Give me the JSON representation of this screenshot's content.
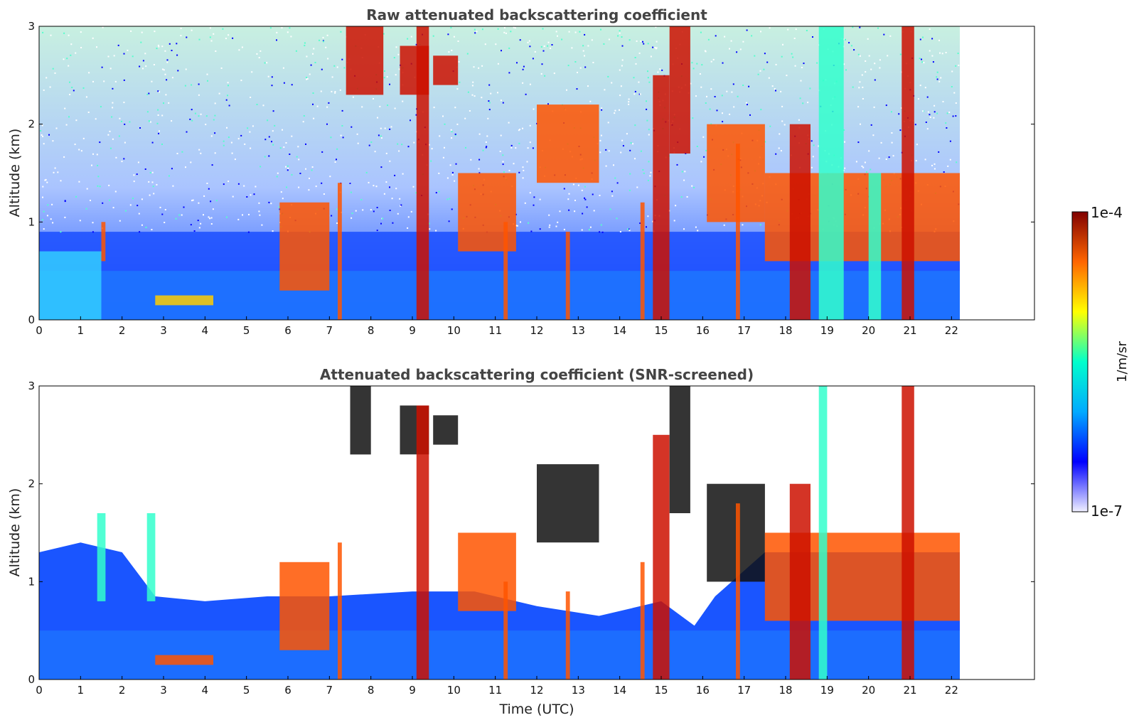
{
  "chart_data": [
    {
      "type": "heatmap",
      "title": "Raw attenuated backscattering coefficient",
      "xlabel": "",
      "ylabel": "Altitude (km)",
      "xlim": [
        0,
        24
      ],
      "ylim": [
        0,
        3
      ],
      "x_ticks": [
        "0",
        "1",
        "2",
        "3",
        "4",
        "5",
        "6",
        "7",
        "8",
        "9",
        "10",
        "11",
        "12",
        "13",
        "14",
        "15",
        "16",
        "17",
        "18",
        "19",
        "20",
        "21",
        "22"
      ],
      "y_ticks": [
        "0",
        "1",
        "2",
        "3"
      ],
      "data_end_time": 22.2,
      "screening": "none",
      "noise_above_km": 0.9,
      "aerosol_layer_top_km": 0.5,
      "cloud_features": [
        {
          "t_start": 0.0,
          "t_end": 1.5,
          "base_km": 0.0,
          "top_km": 0.7,
          "intensity": "low-medium"
        },
        {
          "t_start": 1.5,
          "t_end": 1.6,
          "base_km": 0.6,
          "top_km": 1.0,
          "intensity": "high"
        },
        {
          "t_start": 2.8,
          "t_end": 4.2,
          "base_km": 0.15,
          "top_km": 0.25,
          "intensity": "medium-high"
        },
        {
          "t_start": 5.8,
          "t_end": 7.0,
          "base_km": 0.3,
          "top_km": 1.2,
          "intensity": "high"
        },
        {
          "t_start": 7.2,
          "t_end": 7.3,
          "base_km": 0.0,
          "top_km": 1.4,
          "intensity": "high"
        },
        {
          "t_start": 7.4,
          "t_end": 8.3,
          "base_km": 2.3,
          "top_km": 3.0,
          "intensity": "very high"
        },
        {
          "t_start": 8.7,
          "t_end": 9.4,
          "base_km": 2.3,
          "top_km": 2.8,
          "intensity": "very high"
        },
        {
          "t_start": 9.1,
          "t_end": 9.4,
          "base_km": 0.0,
          "top_km": 3.0,
          "intensity": "very high"
        },
        {
          "t_start": 9.5,
          "t_end": 10.1,
          "base_km": 2.4,
          "top_km": 2.7,
          "intensity": "very high"
        },
        {
          "t_start": 10.1,
          "t_end": 11.5,
          "base_km": 0.7,
          "top_km": 1.5,
          "intensity": "high"
        },
        {
          "t_start": 11.2,
          "t_end": 11.3,
          "base_km": 0.0,
          "top_km": 1.0,
          "intensity": "high"
        },
        {
          "t_start": 12.0,
          "t_end": 13.5,
          "base_km": 1.4,
          "top_km": 2.2,
          "intensity": "high"
        },
        {
          "t_start": 12.7,
          "t_end": 12.8,
          "base_km": 0.0,
          "top_km": 0.9,
          "intensity": "high"
        },
        {
          "t_start": 14.5,
          "t_end": 14.6,
          "base_km": 0.0,
          "top_km": 1.2,
          "intensity": "high"
        },
        {
          "t_start": 14.8,
          "t_end": 15.2,
          "base_km": 0.0,
          "top_km": 2.5,
          "intensity": "very high"
        },
        {
          "t_start": 15.2,
          "t_end": 15.7,
          "base_km": 1.7,
          "top_km": 3.0,
          "intensity": "very high"
        },
        {
          "t_start": 16.1,
          "t_end": 17.5,
          "base_km": 1.0,
          "top_km": 2.0,
          "intensity": "high"
        },
        {
          "t_start": 16.8,
          "t_end": 16.9,
          "base_km": 0.0,
          "top_km": 1.8,
          "intensity": "high"
        },
        {
          "t_start": 17.5,
          "t_end": 22.2,
          "base_km": 0.6,
          "top_km": 1.5,
          "intensity": "high"
        },
        {
          "t_start": 18.1,
          "t_end": 18.6,
          "base_km": 0.0,
          "top_km": 2.0,
          "intensity": "very high"
        },
        {
          "t_start": 18.8,
          "t_end": 19.4,
          "base_km": 0.0,
          "top_km": 3.0,
          "intensity": "medium"
        },
        {
          "t_start": 20.0,
          "t_end": 20.3,
          "base_km": 0.0,
          "top_km": 1.5,
          "intensity": "medium"
        },
        {
          "t_start": 20.8,
          "t_end": 21.1,
          "base_km": 0.0,
          "top_km": 3.0,
          "intensity": "very high"
        }
      ]
    },
    {
      "type": "heatmap",
      "title": "Attenuated backscattering coefficient (SNR-screened)",
      "xlabel": "Time (UTC)",
      "ylabel": "Altitude (km)",
      "xlim": [
        0,
        24
      ],
      "ylim": [
        0,
        3
      ],
      "x_ticks": [
        "0",
        "1",
        "2",
        "3",
        "4",
        "5",
        "6",
        "7",
        "8",
        "9",
        "10",
        "11",
        "12",
        "13",
        "14",
        "15",
        "16",
        "17",
        "18",
        "19",
        "20",
        "21",
        "22"
      ],
      "y_ticks": [
        "0",
        "1",
        "2",
        "3"
      ],
      "data_end_time": 22.2,
      "screening": "SNR",
      "boundary_layer_top_km": [
        {
          "t": 0.0,
          "km": 1.3
        },
        {
          "t": 1.0,
          "km": 1.4
        },
        {
          "t": 2.0,
          "km": 1.3
        },
        {
          "t": 2.8,
          "km": 0.85
        },
        {
          "t": 4.0,
          "km": 0.8
        },
        {
          "t": 5.5,
          "km": 0.85
        },
        {
          "t": 7.0,
          "km": 0.85
        },
        {
          "t": 9.0,
          "km": 0.9
        },
        {
          "t": 10.5,
          "km": 0.9
        },
        {
          "t": 12.0,
          "km": 0.75
        },
        {
          "t": 13.5,
          "km": 0.65
        },
        {
          "t": 15.0,
          "km": 0.8
        },
        {
          "t": 15.8,
          "km": 0.55
        },
        {
          "t": 16.3,
          "km": 0.85
        },
        {
          "t": 17.5,
          "km": 1.3
        },
        {
          "t": 20.0,
          "km": 1.3
        },
        {
          "t": 22.2,
          "km": 1.3
        }
      ],
      "cloud_features": [
        {
          "t_start": 1.4,
          "t_end": 1.6,
          "base_km": 0.8,
          "top_km": 1.7,
          "intensity": "medium"
        },
        {
          "t_start": 2.6,
          "t_end": 2.8,
          "base_km": 0.8,
          "top_km": 1.7,
          "intensity": "medium"
        },
        {
          "t_start": 2.8,
          "t_end": 4.2,
          "base_km": 0.15,
          "top_km": 0.25,
          "intensity": "high"
        },
        {
          "t_start": 5.8,
          "t_end": 7.0,
          "base_km": 0.3,
          "top_km": 1.2,
          "intensity": "high"
        },
        {
          "t_start": 7.2,
          "t_end": 7.3,
          "base_km": 0.0,
          "top_km": 1.4,
          "intensity": "high"
        },
        {
          "t_start": 7.5,
          "t_end": 8.0,
          "base_km": 2.3,
          "top_km": 3.0,
          "intensity": "saturated"
        },
        {
          "t_start": 8.7,
          "t_end": 9.4,
          "base_km": 2.3,
          "top_km": 2.8,
          "intensity": "saturated"
        },
        {
          "t_start": 9.1,
          "t_end": 9.4,
          "base_km": 0.0,
          "top_km": 2.8,
          "intensity": "very high"
        },
        {
          "t_start": 9.5,
          "t_end": 10.1,
          "base_km": 2.4,
          "top_km": 2.7,
          "intensity": "saturated"
        },
        {
          "t_start": 10.1,
          "t_end": 11.5,
          "base_km": 0.7,
          "top_km": 1.5,
          "intensity": "high"
        },
        {
          "t_start": 11.2,
          "t_end": 11.3,
          "base_km": 0.0,
          "top_km": 1.0,
          "intensity": "high"
        },
        {
          "t_start": 12.0,
          "t_end": 13.5,
          "base_km": 1.4,
          "top_km": 2.2,
          "intensity": "saturated"
        },
        {
          "t_start": 12.7,
          "t_end": 12.8,
          "base_km": 0.0,
          "top_km": 0.9,
          "intensity": "high"
        },
        {
          "t_start": 14.5,
          "t_end": 14.6,
          "base_km": 0.0,
          "top_km": 1.2,
          "intensity": "high"
        },
        {
          "t_start": 14.8,
          "t_end": 15.2,
          "base_km": 0.0,
          "top_km": 2.5,
          "intensity": "very high"
        },
        {
          "t_start": 15.2,
          "t_end": 15.7,
          "base_km": 1.7,
          "top_km": 3.0,
          "intensity": "saturated"
        },
        {
          "t_start": 16.1,
          "t_end": 17.5,
          "base_km": 1.0,
          "top_km": 2.0,
          "intensity": "saturated"
        },
        {
          "t_start": 16.8,
          "t_end": 16.9,
          "base_km": 0.0,
          "top_km": 1.8,
          "intensity": "high"
        },
        {
          "t_start": 17.5,
          "t_end": 22.2,
          "base_km": 0.6,
          "top_km": 1.5,
          "intensity": "high"
        },
        {
          "t_start": 18.1,
          "t_end": 18.6,
          "base_km": 0.0,
          "top_km": 2.0,
          "intensity": "very high"
        },
        {
          "t_start": 18.8,
          "t_end": 19.0,
          "base_km": 0.0,
          "top_km": 3.0,
          "intensity": "medium"
        },
        {
          "t_start": 20.8,
          "t_end": 21.1,
          "base_km": 0.0,
          "top_km": 3.0,
          "intensity": "very high"
        }
      ]
    }
  ],
  "colorbar": {
    "label": "1/m/sr",
    "min_label": "1e-7",
    "max_label": "1e-4",
    "colormap": "jet",
    "scale": "log",
    "colors": [
      "#f0f0ff",
      "#0000ff",
      "#00aaff",
      "#00ffcc",
      "#ffff00",
      "#ff6600",
      "#800000"
    ]
  }
}
